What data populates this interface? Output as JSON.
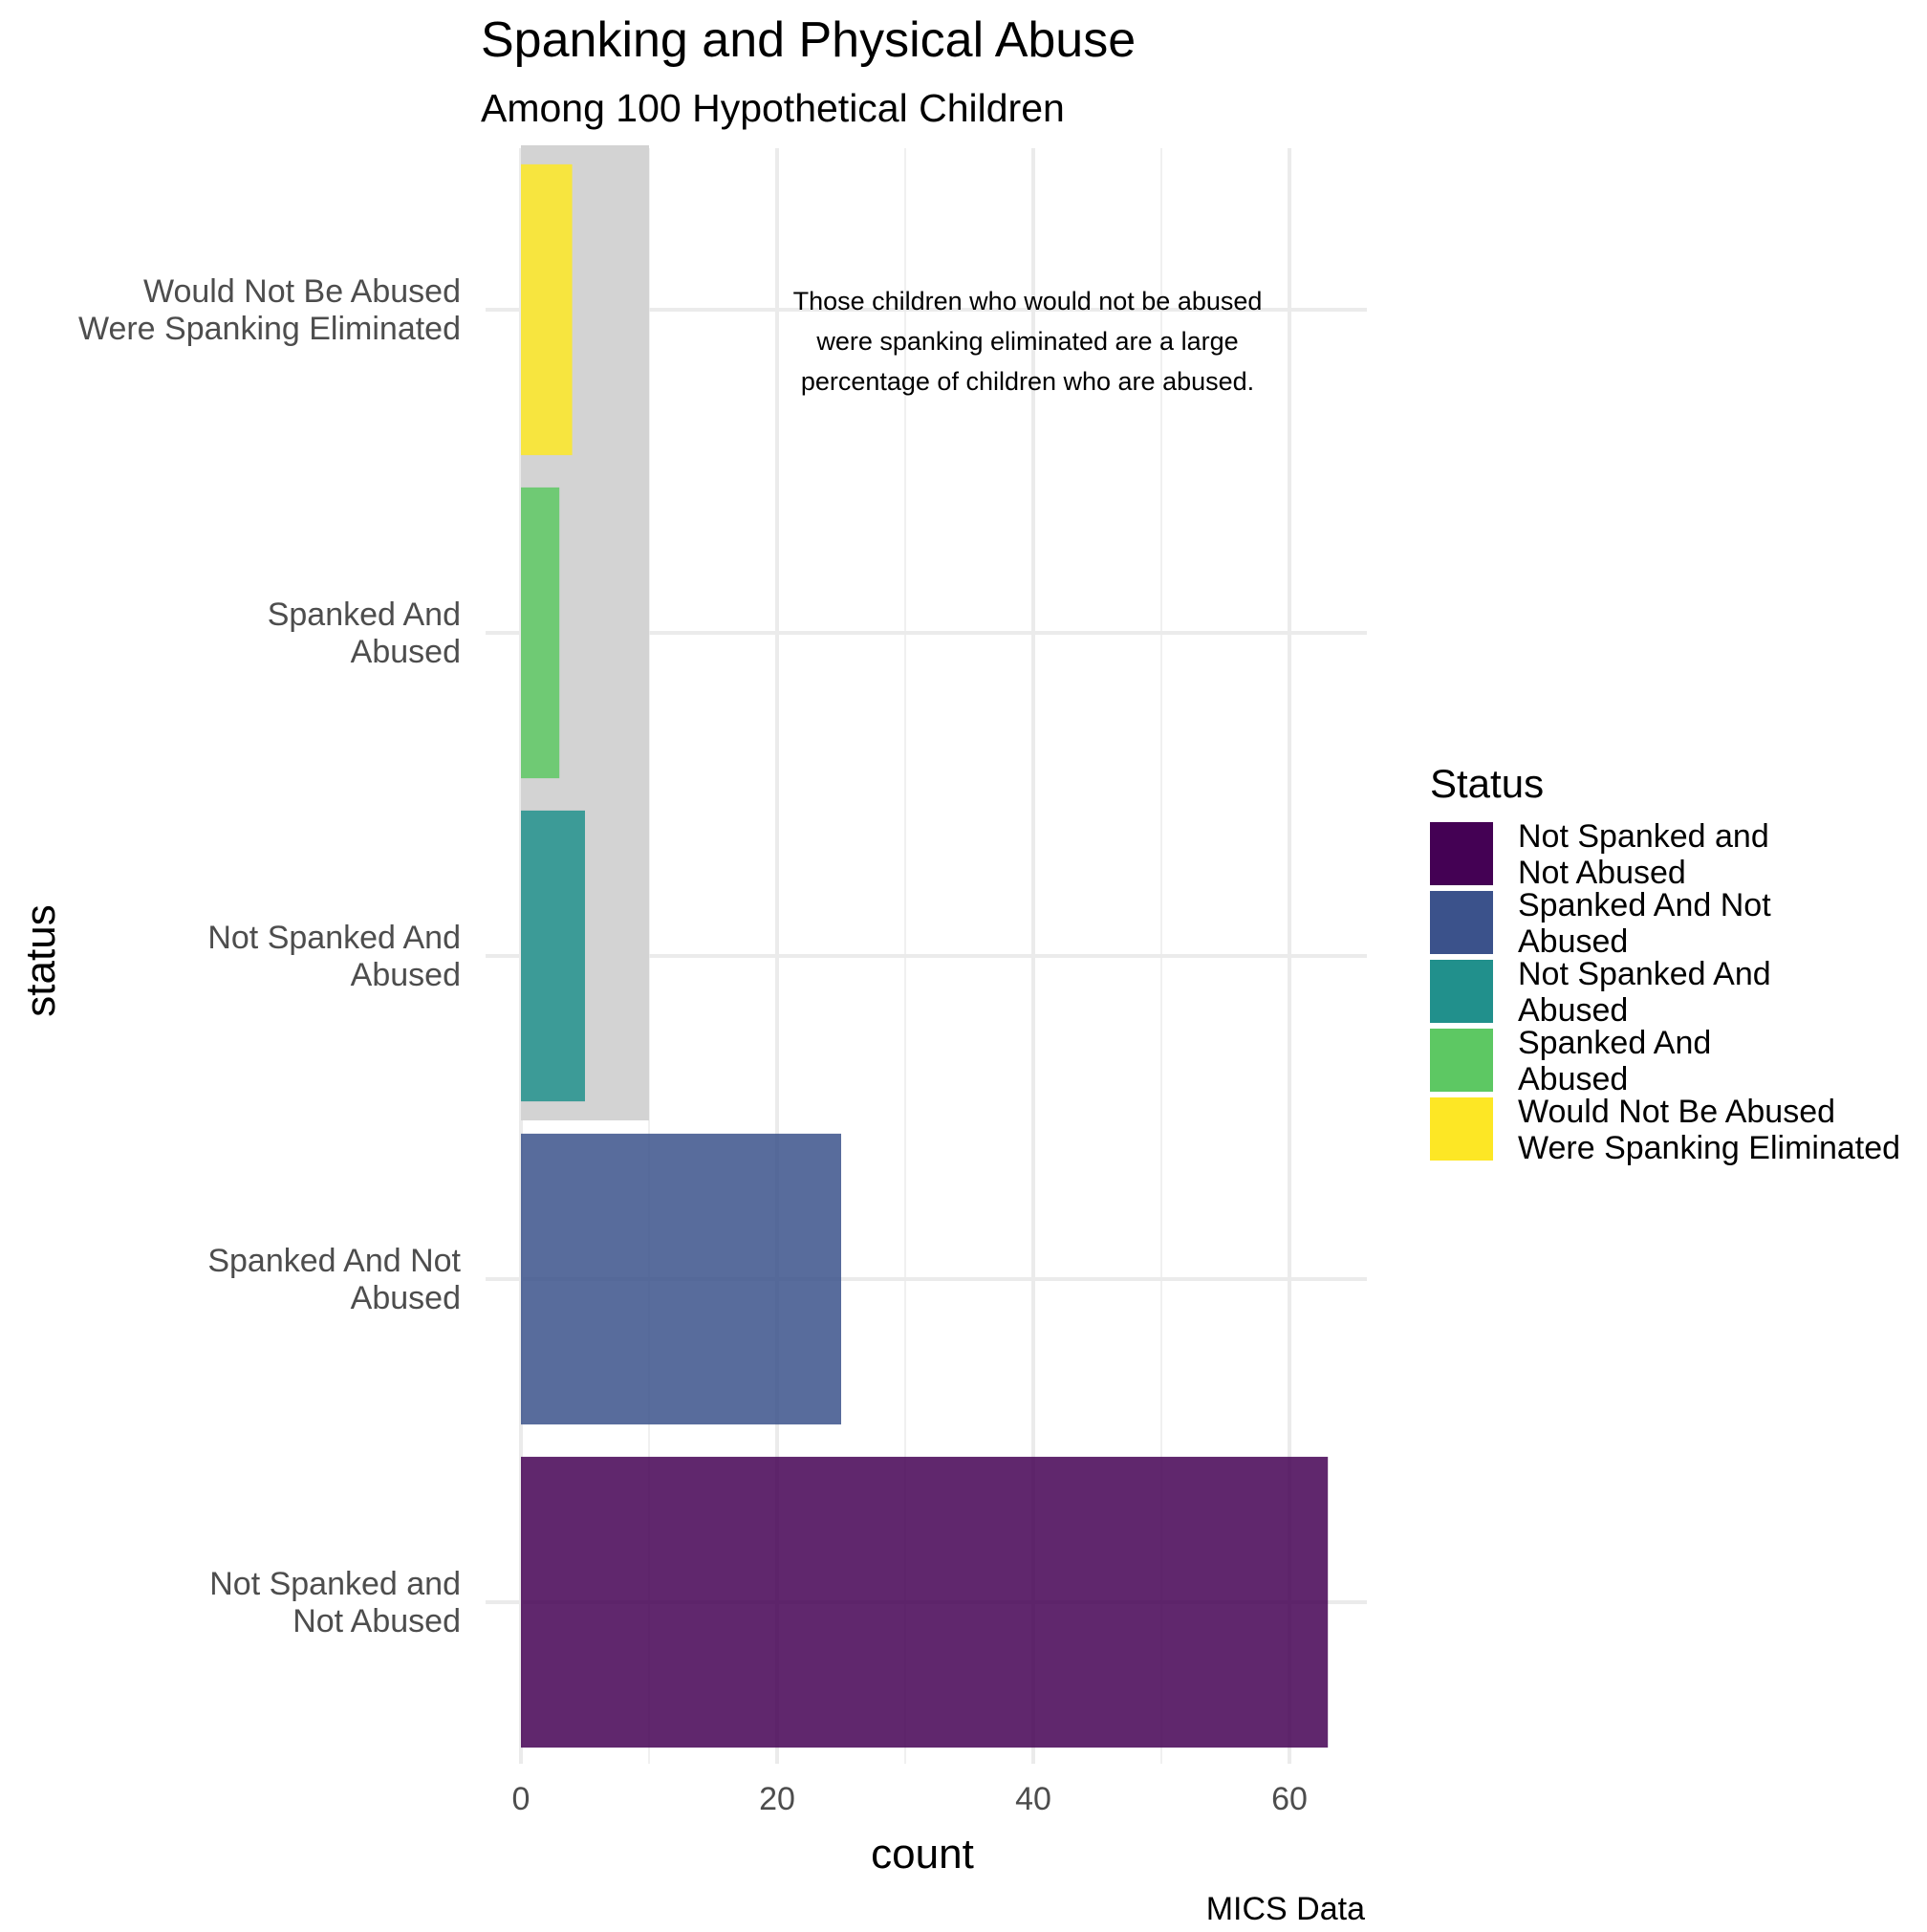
{
  "chart_data": {
    "type": "bar",
    "orientation": "horizontal",
    "title": "Spanking and Physical Abuse",
    "subtitle": "Among 100 Hypothetical Children",
    "xlabel": "count",
    "ylabel": "status",
    "caption": "MICS Data",
    "xlim": [
      0,
      66
    ],
    "xticks": [
      "0",
      "20",
      "40",
      "60"
    ],
    "grid": true,
    "categories": [
      [
        "Not Spanked and",
        "Not Abused"
      ],
      [
        "Spanked And Not",
        "Abused"
      ],
      [
        "Not Spanked And",
        "Abused"
      ],
      [
        "Spanked And",
        "Abused"
      ],
      [
        "Would Not Be Abused",
        "Were Spanking Eliminated"
      ]
    ],
    "values": [
      63,
      25,
      5,
      3,
      4
    ],
    "colors": [
      "#440154",
      "#3B528B",
      "#21908C",
      "#5DC863",
      "#FDE725"
    ],
    "bar_opacity": 0.85,
    "highlight": {
      "from": 0,
      "to": 10,
      "categories_covered": [
        "Not Spanked And Abused",
        "Spanked And Abused",
        "Would Not Be Abused Were Spanking Eliminated"
      ],
      "color": "#d3d3d3"
    },
    "annotation": {
      "lines": [
        "Those children who would not be abused",
        "were spanking eliminated are a large",
        "percentage of children who are abused."
      ]
    },
    "legend": {
      "title": "Status",
      "placement": "right",
      "items": [
        {
          "label": [
            "Not Spanked and",
            "Not Abused"
          ],
          "color": "#440154"
        },
        {
          "label": [
            "Spanked And Not",
            "Abused"
          ],
          "color": "#3B528B"
        },
        {
          "label": [
            "Not Spanked And",
            "Abused"
          ],
          "color": "#21908C"
        },
        {
          "label": [
            "Spanked And",
            "Abused"
          ],
          "color": "#5DC863"
        },
        {
          "label": [
            "Would Not Be Abused",
            "Were Spanking Eliminated"
          ],
          "color": "#FDE725"
        }
      ]
    }
  }
}
